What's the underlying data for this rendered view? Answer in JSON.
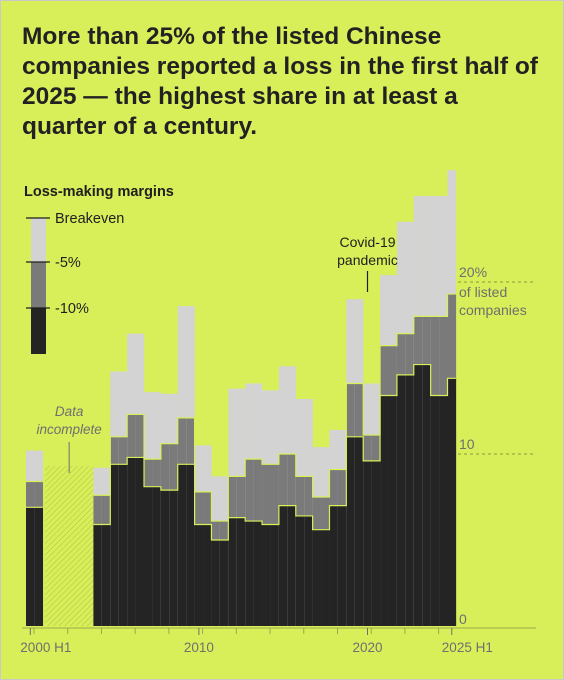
{
  "title": "More than 25% of the listed Chinese companies reported a loss in the first half of 2025 — the highest share in at least a quarter of a century.",
  "chart_data": {
    "type": "area",
    "x": [
      "2000 H1",
      "2000 H2",
      "2001 H1",
      "2001 H2",
      "2002 H1",
      "2002 H2",
      "2003 H1",
      "2003 H2",
      "2004 H1",
      "2004 H2",
      "2005 H1",
      "2005 H2",
      "2006 H1",
      "2006 H2",
      "2007 H1",
      "2007 H2",
      "2008 H1",
      "2008 H2",
      "2009 H1",
      "2009 H2",
      "2010 H1",
      "2010 H2",
      "2011 H1",
      "2011 H2",
      "2012 H1",
      "2012 H2",
      "2013 H1",
      "2013 H2",
      "2014 H1",
      "2014 H2",
      "2015 H1",
      "2015 H2",
      "2016 H1",
      "2016 H2",
      "2017 H1",
      "2017 H2",
      "2018 H1",
      "2018 H2",
      "2019 H1",
      "2019 H2",
      "2020 H1",
      "2020 H2",
      "2021 H1",
      "2021 H2",
      "2022 H1",
      "2022 H2",
      "2023 H1",
      "2023 H2",
      "2024 H1",
      "2024 H2",
      "2025 H1"
    ],
    "series": [
      {
        "name": "Breakeven",
        "values": [
          10.2,
          10.2,
          null,
          null,
          null,
          null,
          null,
          null,
          9.2,
          9.2,
          14.8,
          14.8,
          17.0,
          17.0,
          13.6,
          13.6,
          13.5,
          13.5,
          18.6,
          18.6,
          10.5,
          10.5,
          8.7,
          8.7,
          13.8,
          13.8,
          14.1,
          14.1,
          13.7,
          13.7,
          15.1,
          15.1,
          13.2,
          13.2,
          10.4,
          10.4,
          11.4,
          11.4,
          19.0,
          19.0,
          14.1,
          14.1,
          20.4,
          20.4,
          23.5,
          23.5,
          25.0,
          25.0,
          25.0,
          25.0,
          26.5
        ]
      },
      {
        "name": "-5%",
        "values": [
          8.4,
          8.4,
          null,
          null,
          null,
          null,
          null,
          null,
          7.6,
          7.6,
          11.0,
          11.0,
          12.3,
          12.3,
          9.7,
          9.7,
          10.6,
          10.6,
          12.1,
          12.1,
          7.8,
          7.8,
          6.1,
          6.1,
          8.7,
          8.7,
          9.7,
          9.7,
          9.4,
          9.4,
          10.0,
          10.0,
          8.7,
          8.7,
          7.5,
          7.5,
          9.1,
          9.1,
          14.1,
          14.1,
          11.1,
          11.1,
          16.3,
          16.3,
          17.0,
          17.0,
          18.0,
          18.0,
          18.0,
          18.0,
          19.3
        ]
      },
      {
        "name": "-10%",
        "values": [
          6.9,
          6.9,
          null,
          null,
          null,
          null,
          null,
          null,
          5.9,
          5.9,
          9.4,
          9.4,
          9.8,
          9.8,
          8.1,
          8.1,
          7.9,
          7.9,
          9.4,
          9.4,
          5.9,
          5.9,
          5.0,
          5.0,
          6.3,
          6.3,
          6.1,
          6.1,
          5.9,
          5.9,
          7.0,
          7.0,
          6.4,
          6.4,
          5.6,
          5.6,
          7.0,
          7.0,
          11.0,
          11.0,
          9.6,
          9.6,
          13.4,
          13.4,
          14.6,
          14.6,
          15.2,
          15.2,
          13.4,
          13.4,
          14.4
        ]
      }
    ],
    "ylabel": "% of listed companies",
    "ylim": [
      0,
      30
    ],
    "y_ticks": [
      0,
      10,
      20
    ],
    "y_tick_labels": [
      "0",
      "10",
      "20%"
    ],
    "y_unit_label": "of listed companies",
    "x_tick_labels": [
      {
        "x": "2000 H1",
        "label": "2000 H1"
      },
      {
        "x": "2010 H1",
        "label": "2010"
      },
      {
        "x": "2020 H1",
        "label": "2020"
      },
      {
        "x": "2025 H1",
        "label": "2025 H1"
      }
    ],
    "legend": {
      "title": "Loss-making margins",
      "items": [
        {
          "label": "Breakeven",
          "color": "#d3d3d3"
        },
        {
          "label": "-5%",
          "color": "#7a7a7a"
        },
        {
          "label": "-10%",
          "color": "#242424"
        }
      ],
      "placement": "top-left"
    },
    "annotations": [
      {
        "x": "2020 H1",
        "label": "Covid-19 pandemic"
      },
      {
        "x_range": [
          "2001 H1",
          "2003 H2"
        ],
        "label": "Data incomplete"
      }
    ],
    "grid": false
  },
  "colors": {
    "background": "#d9ef5a",
    "light": "#d3d3d3",
    "mid": "#7a7a7a",
    "dark": "#242424",
    "outline": "#d9ef5a",
    "axis_text": "#6f6f6f",
    "title_text": "#222222"
  }
}
